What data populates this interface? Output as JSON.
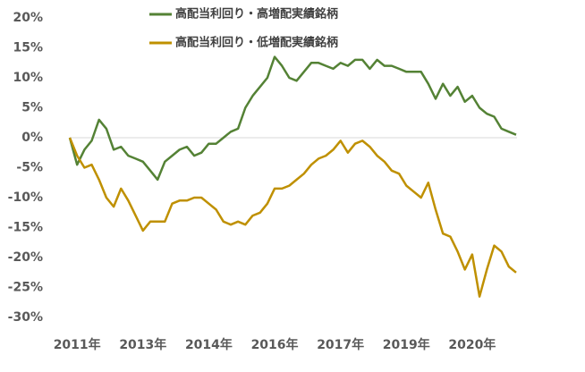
{
  "chart_data": {
    "type": "line",
    "categories": [
      null,
      "2011年",
      null,
      null,
      null,
      null,
      null,
      null,
      null,
      null,
      "2013年",
      null,
      null,
      null,
      null,
      null,
      null,
      null,
      null,
      "2014年",
      null,
      null,
      null,
      null,
      null,
      null,
      null,
      null,
      "2016年",
      null,
      null,
      null,
      null,
      null,
      null,
      null,
      null,
      "2017年",
      null,
      null,
      null,
      null,
      null,
      null,
      null,
      null,
      "2019年",
      null,
      null,
      null,
      null,
      null,
      null,
      null,
      null,
      "2020年",
      null,
      null,
      null,
      null,
      null,
      null
    ],
    "series": [
      {
        "name": "高配当利回り・高増配実績銘柄",
        "color": "#548235",
        "values": [
          0,
          -4.5,
          -2,
          -0.5,
          3,
          1.5,
          -2,
          -1.5,
          -3,
          -3.5,
          -4,
          -5.5,
          -7,
          -4,
          -3,
          -2,
          -1.5,
          -3,
          -2.5,
          -1,
          -1,
          0,
          1,
          1.5,
          5,
          7,
          8.5,
          10,
          13.5,
          12,
          10,
          9.5,
          11,
          12.5,
          12.5,
          12,
          11.5,
          12.5,
          12,
          13,
          13,
          11.5,
          13,
          12,
          12,
          11.5,
          11,
          11,
          11,
          9,
          6.5,
          9,
          7,
          8.5,
          6,
          7,
          5,
          4,
          3.5,
          1.5,
          1,
          0.5
        ]
      },
      {
        "name": "高配当利回り・低増配実績銘柄",
        "color": "#bf9000",
        "values": [
          0,
          -3,
          -5,
          -4.5,
          -7,
          -10,
          -11.5,
          -8.5,
          -10.5,
          -13,
          -15.5,
          -14,
          -14,
          -14,
          -11,
          -10.5,
          -10.5,
          -10,
          -10,
          -11,
          -12,
          -14,
          -14.5,
          -14,
          -14.5,
          -13,
          -12.5,
          -11,
          -8.5,
          -8.5,
          -8,
          -7,
          -6,
          -4.5,
          -3.5,
          -3,
          -2,
          -0.5,
          -2.5,
          -1,
          -0.5,
          -1.5,
          -3,
          -4,
          -5.5,
          -6,
          -8,
          -9,
          -10,
          -7.5,
          -12,
          -16,
          -16.5,
          -19,
          -22,
          -19.5,
          -26.5,
          -22,
          -18,
          -19,
          -21.5,
          -22.5
        ]
      }
    ],
    "ylim": [
      -30,
      20
    ],
    "yticks": [
      {
        "value": -30,
        "label": "-30%"
      },
      {
        "value": -25,
        "label": "-25%"
      },
      {
        "value": -20,
        "label": "-20%"
      },
      {
        "value": -15,
        "label": "-15%"
      },
      {
        "value": -10,
        "label": "-10%"
      },
      {
        "value": -5,
        "label": "-5%"
      },
      {
        "value": 0,
        "label": "0%"
      },
      {
        "value": 5,
        "label": "5%"
      },
      {
        "value": 10,
        "label": "10%"
      },
      {
        "value": 15,
        "label": "15%"
      },
      {
        "value": 20,
        "label": "20%"
      }
    ]
  }
}
